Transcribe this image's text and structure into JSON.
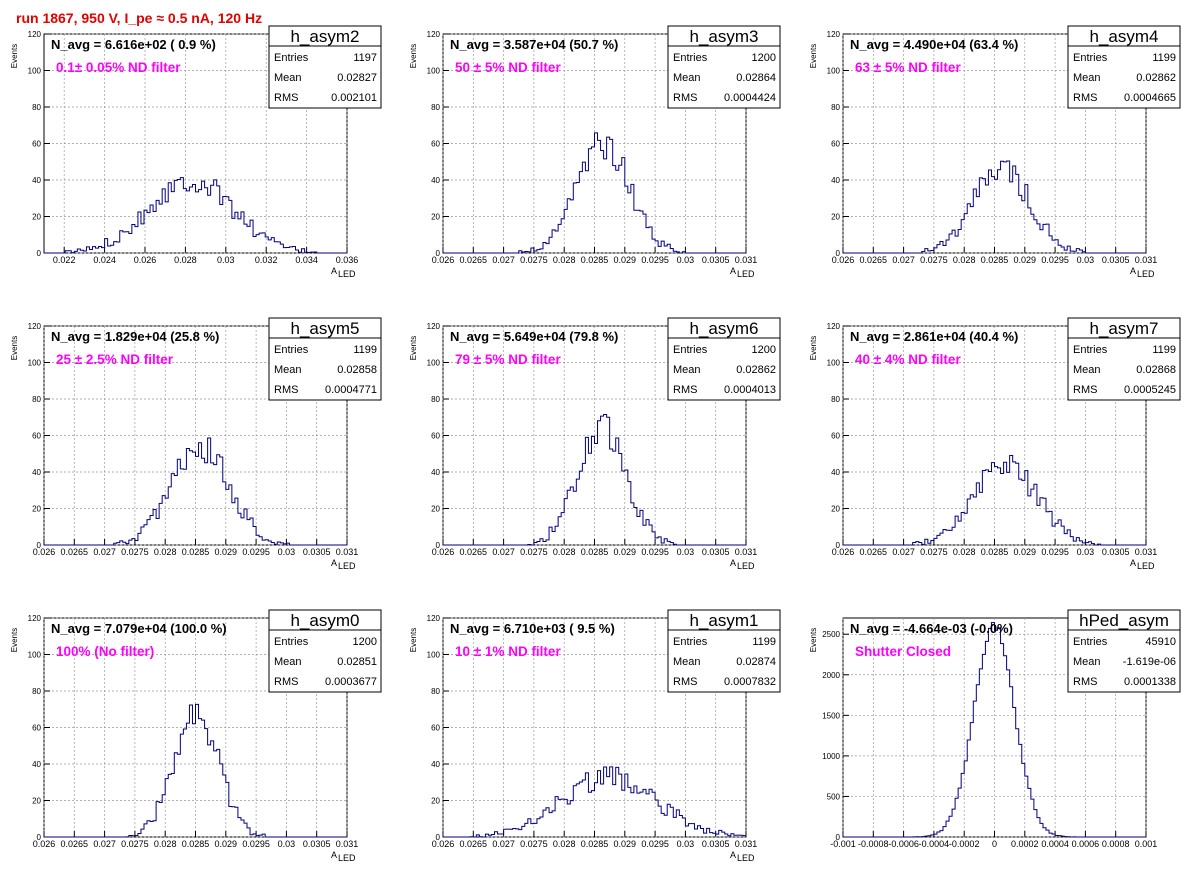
{
  "page": {
    "title": "run 1867,   950 V, I_pe ≈ 0.5 nA, 120 Hz"
  },
  "colors": {
    "title": "#e00000",
    "filter_label": "#ff00ff",
    "histogram_line": "#000080",
    "grid": "#999999"
  },
  "chart_data": [
    {
      "type": "histogram",
      "name": "h_asym2",
      "navg": "N_avg = 6.616e+02 ( 0.9 %)",
      "filter": "0.1± 0.05% ND filter",
      "stats": {
        "entries": "1197",
        "mean": "0.02827",
        "rms": "0.002101"
      },
      "stats_labels": {
        "entries": "Entries",
        "mean": "Mean",
        "rms": "RMS"
      },
      "xlabel": "A",
      "xlabel_sub": "LED",
      "ylabel": "Events",
      "xlim": [
        0.021,
        0.036
      ],
      "ylim": [
        0,
        120
      ],
      "grid": true,
      "xticks": [
        0.022,
        0.024,
        0.026,
        0.028,
        0.03,
        0.032,
        0.034,
        0.036
      ],
      "xticklabels": [
        "0.022",
        "0.024",
        "0.026",
        "0.028",
        "0.03",
        "0.032",
        "0.034",
        "0.036"
      ],
      "yticks": [
        0,
        20,
        40,
        60,
        80,
        100,
        120
      ],
      "yticklabels": [
        "0",
        "20",
        "40",
        "60",
        "80",
        "100",
        "120"
      ],
      "mean": 0.02827,
      "sigma": 0.002101,
      "peak": 40,
      "nbins": 100
    },
    {
      "type": "histogram",
      "name": "h_asym3",
      "navg": "N_avg = 3.587e+04 (50.7 %)",
      "filter": "50 ± 5% ND filter",
      "stats": {
        "entries": "1200",
        "mean": "0.02864",
        "rms": "0.0004424"
      },
      "stats_labels": {
        "entries": "Entries",
        "mean": "Mean",
        "rms": "RMS"
      },
      "xlabel": "A",
      "xlabel_sub": "LED",
      "ylabel": "Events",
      "xlim": [
        0.026,
        0.031
      ],
      "ylim": [
        0,
        120
      ],
      "grid": true,
      "xticks": [
        0.026,
        0.0265,
        0.027,
        0.0275,
        0.028,
        0.0285,
        0.029,
        0.0295,
        0.03,
        0.0305,
        0.031
      ],
      "xticklabels": [
        "0.026",
        "0.0265",
        "0.027",
        "0.0275",
        "0.028",
        "0.0285",
        "0.029",
        "0.0295",
        "0.03",
        "0.0305",
        "0.031"
      ],
      "yticks": [
        0,
        20,
        40,
        60,
        80,
        100,
        120
      ],
      "yticklabels": [
        "0",
        "20",
        "40",
        "60",
        "80",
        "100",
        "120"
      ],
      "mean": 0.02864,
      "sigma": 0.0004424,
      "peak": 60,
      "nbins": 100
    },
    {
      "type": "histogram",
      "name": "h_asym4",
      "navg": "N_avg = 4.490e+04 (63.4 %)",
      "filter": "63 ± 5% ND filter",
      "stats": {
        "entries": "1199",
        "mean": "0.02862",
        "rms": "0.0004665"
      },
      "stats_labels": {
        "entries": "Entries",
        "mean": "Mean",
        "rms": "RMS"
      },
      "xlabel": "A",
      "xlabel_sub": "LED",
      "ylabel": "Events",
      "xlim": [
        0.026,
        0.031
      ],
      "ylim": [
        0,
        120
      ],
      "grid": true,
      "xticks": [
        0.026,
        0.0265,
        0.027,
        0.0275,
        0.028,
        0.0285,
        0.029,
        0.0295,
        0.03,
        0.0305,
        0.031
      ],
      "xticklabels": [
        "0.026",
        "0.0265",
        "0.027",
        "0.0275",
        "0.028",
        "0.0285",
        "0.029",
        "0.0295",
        "0.03",
        "0.0305",
        "0.031"
      ],
      "yticks": [
        0,
        20,
        40,
        60,
        80,
        100,
        120
      ],
      "yticklabels": [
        "0",
        "20",
        "40",
        "60",
        "80",
        "100",
        "120"
      ],
      "mean": 0.02862,
      "sigma": 0.0004665,
      "peak": 46,
      "nbins": 100
    },
    {
      "type": "histogram",
      "name": "h_asym5",
      "navg": "N_avg = 1.829e+04 (25.8 %)",
      "filter": "25 ± 2.5% ND filter",
      "stats": {
        "entries": "1199",
        "mean": "0.02858",
        "rms": "0.0004771"
      },
      "stats_labels": {
        "entries": "Entries",
        "mean": "Mean",
        "rms": "RMS"
      },
      "xlabel": "A",
      "xlabel_sub": "LED",
      "ylabel": "Events",
      "xlim": [
        0.026,
        0.031
      ],
      "ylim": [
        0,
        120
      ],
      "grid": true,
      "xticks": [
        0.026,
        0.0265,
        0.027,
        0.0275,
        0.028,
        0.0285,
        0.029,
        0.0295,
        0.03,
        0.0305,
        0.031
      ],
      "xticklabels": [
        "0.026",
        "0.0265",
        "0.027",
        "0.0275",
        "0.028",
        "0.0285",
        "0.029",
        "0.0295",
        "0.03",
        "0.0305",
        "0.031"
      ],
      "yticks": [
        0,
        20,
        40,
        60,
        80,
        100,
        120
      ],
      "yticklabels": [
        "0",
        "20",
        "40",
        "60",
        "80",
        "100",
        "120"
      ],
      "mean": 0.02858,
      "sigma": 0.0004771,
      "peak": 54,
      "nbins": 100
    },
    {
      "type": "histogram",
      "name": "h_asym6",
      "navg": "N_avg = 5.649e+04 (79.8 %)",
      "filter": "79 ± 5% ND filter",
      "stats": {
        "entries": "1200",
        "mean": "0.02862",
        "rms": "0.0004013"
      },
      "stats_labels": {
        "entries": "Entries",
        "mean": "Mean",
        "rms": "RMS"
      },
      "xlabel": "A",
      "xlabel_sub": "LED",
      "ylabel": "Events",
      "xlim": [
        0.026,
        0.031
      ],
      "ylim": [
        0,
        120
      ],
      "grid": true,
      "xticks": [
        0.026,
        0.0265,
        0.027,
        0.0275,
        0.028,
        0.0285,
        0.029,
        0.0295,
        0.03,
        0.0305,
        0.031
      ],
      "xticklabels": [
        "0.026",
        "0.0265",
        "0.027",
        "0.0275",
        "0.028",
        "0.0285",
        "0.029",
        "0.0295",
        "0.03",
        "0.0305",
        "0.031"
      ],
      "yticks": [
        0,
        20,
        40,
        60,
        80,
        100,
        120
      ],
      "yticklabels": [
        "0",
        "20",
        "40",
        "60",
        "80",
        "100",
        "120"
      ],
      "mean": 0.02862,
      "sigma": 0.0004013,
      "peak": 64,
      "nbins": 100
    },
    {
      "type": "histogram",
      "name": "h_asym7",
      "navg": "N_avg = 2.861e+04 (40.4 %)",
      "filter": "40 ± 4% ND filter",
      "stats": {
        "entries": "1199",
        "mean": "0.02868",
        "rms": "0.0005245"
      },
      "stats_labels": {
        "entries": "Entries",
        "mean": "Mean",
        "rms": "RMS"
      },
      "xlabel": "A",
      "xlabel_sub": "LED",
      "ylabel": "Events",
      "xlim": [
        0.026,
        0.031
      ],
      "ylim": [
        0,
        120
      ],
      "grid": true,
      "xticks": [
        0.026,
        0.0265,
        0.027,
        0.0275,
        0.028,
        0.0285,
        0.029,
        0.0295,
        0.03,
        0.0305,
        0.031
      ],
      "xticklabels": [
        "0.026",
        "0.0265",
        "0.027",
        "0.0275",
        "0.028",
        "0.0285",
        "0.029",
        "0.0295",
        "0.03",
        "0.0305",
        "0.031"
      ],
      "yticks": [
        0,
        20,
        40,
        60,
        80,
        100,
        120
      ],
      "yticklabels": [
        "0",
        "20",
        "40",
        "60",
        "80",
        "100",
        "120"
      ],
      "mean": 0.02868,
      "sigma": 0.0005245,
      "peak": 44,
      "nbins": 100
    },
    {
      "type": "histogram",
      "name": "h_asym0",
      "navg": "N_avg = 7.079e+04 (100.0 %)",
      "filter": "100% (No filter)",
      "stats": {
        "entries": "1200",
        "mean": "0.02851",
        "rms": "0.0003677"
      },
      "stats_labels": {
        "entries": "Entries",
        "mean": "Mean",
        "rms": "RMS"
      },
      "xlabel": "A",
      "xlabel_sub": "LED",
      "ylabel": "Events",
      "xlim": [
        0.026,
        0.031
      ],
      "ylim": [
        0,
        120
      ],
      "grid": true,
      "xticks": [
        0.026,
        0.0265,
        0.027,
        0.0275,
        0.028,
        0.0285,
        0.029,
        0.0295,
        0.03,
        0.0305,
        0.031
      ],
      "xticklabels": [
        "0.026",
        "0.0265",
        "0.027",
        "0.0275",
        "0.028",
        "0.0285",
        "0.029",
        "0.0295",
        "0.03",
        "0.0305",
        "0.031"
      ],
      "yticks": [
        0,
        20,
        40,
        60,
        80,
        100,
        120
      ],
      "yticklabels": [
        "0",
        "20",
        "40",
        "60",
        "80",
        "100",
        "120"
      ],
      "mean": 0.02851,
      "sigma": 0.0003677,
      "peak": 68,
      "nbins": 100
    },
    {
      "type": "histogram",
      "name": "h_asym1",
      "navg": "N_avg = 6.710e+03 ( 9.5 %)",
      "filter": "10 ± 1% ND filter",
      "stats": {
        "entries": "1199",
        "mean": "0.02874",
        "rms": "0.0007832"
      },
      "stats_labels": {
        "entries": "Entries",
        "mean": "Mean",
        "rms": "RMS"
      },
      "xlabel": "A",
      "xlabel_sub": "LED",
      "ylabel": "Events",
      "xlim": [
        0.026,
        0.031
      ],
      "ylim": [
        0,
        120
      ],
      "grid": true,
      "xticks": [
        0.026,
        0.0265,
        0.027,
        0.0275,
        0.028,
        0.0285,
        0.029,
        0.0295,
        0.03,
        0.0305,
        0.031
      ],
      "xticklabels": [
        "0.026",
        "0.0265",
        "0.027",
        "0.0275",
        "0.028",
        "0.0285",
        "0.029",
        "0.0295",
        "0.03",
        "0.0305",
        "0.031"
      ],
      "yticks": [
        0,
        20,
        40,
        60,
        80,
        100,
        120
      ],
      "yticklabels": [
        "0",
        "20",
        "40",
        "60",
        "80",
        "100",
        "120"
      ],
      "mean": 0.02874,
      "sigma": 0.0007832,
      "peak": 33,
      "nbins": 100
    },
    {
      "type": "histogram",
      "name": "hPed_asym",
      "navg": "N_avg = -4.664e-03 (-0.0%)",
      "filter": "Shutter Closed",
      "stats": {
        "entries": "45910",
        "mean": "-1.619e-06",
        "rms": "0.0001338"
      },
      "stats_labels": {
        "entries": "Entries",
        "mean": "Mean",
        "rms": "RMS"
      },
      "xlabel": "",
      "xlabel_sub": "",
      "ylabel": "Events",
      "xlim": [
        -0.001,
        0.001
      ],
      "ylim": [
        0,
        2700
      ],
      "grid": true,
      "xticks": [
        -0.001,
        -0.0008,
        -0.0006,
        -0.0004,
        -0.0002,
        0,
        0.0002,
        0.0004,
        0.0006,
        0.0008,
        0.001
      ],
      "xticklabels": [
        "-0.001",
        "-0.0008",
        "-0.0006",
        "-0.0004",
        "-0.0002",
        "0",
        "0.0002",
        "0.0004",
        "0.0006",
        "0.0008",
        "0.001"
      ],
      "yticks": [
        0,
        500,
        1000,
        1500,
        2000,
        2500
      ],
      "yticklabels": [
        "0",
        "500",
        "1000",
        "1500",
        "2000",
        "2500"
      ],
      "mean": -1.619e-06,
      "sigma": 0.0001338,
      "peak": 2600,
      "nbins": 100
    }
  ]
}
